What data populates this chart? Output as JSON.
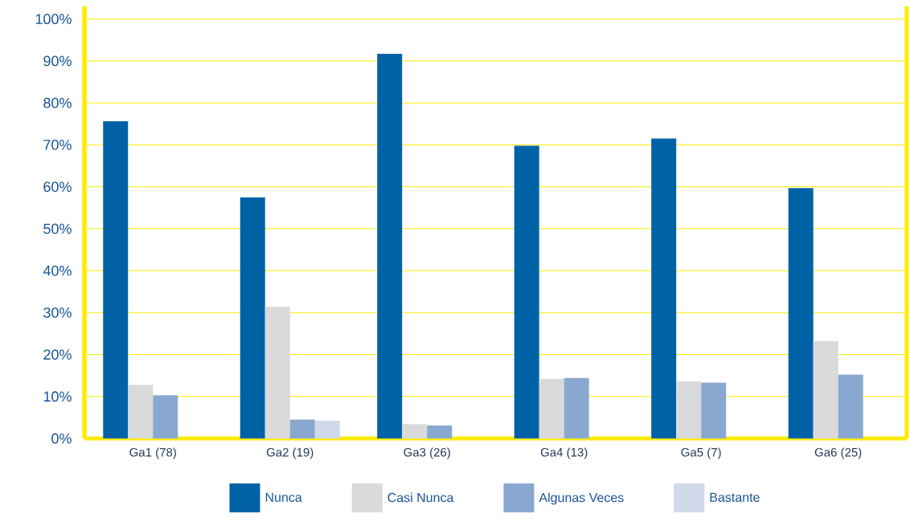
{
  "chart_data": {
    "type": "bar",
    "categories": [
      "Ga1 (78)",
      "Ga2 (19)",
      "Ga3 (26)",
      "Ga4 (13)",
      "Ga5 (7)",
      "Ga6 (25)"
    ],
    "series": [
      {
        "name": "Nunca",
        "color": "#0062a6",
        "values": [
          75.6,
          57.5,
          91.7,
          69.8,
          71.5,
          59.7
        ]
      },
      {
        "name": "Casi Nunca",
        "color": "#d9dadb",
        "values": [
          12.8,
          31.4,
          3.4,
          14.2,
          13.6,
          23.2
        ]
      },
      {
        "name": "Algunas Veces",
        "color": "#88a8d0",
        "values": [
          10.3,
          4.5,
          3.1,
          14.4,
          13.3,
          15.2
        ]
      },
      {
        "name": "Bastante",
        "color": "#cfd9ea",
        "values": [
          null,
          4.2,
          null,
          null,
          null,
          null
        ]
      }
    ],
    "ylim": [
      0,
      103
    ],
    "yticks": [
      {
        "value": 0,
        "label": "0%"
      },
      {
        "value": 10,
        "label": "10%"
      },
      {
        "value": 20,
        "label": "20%"
      },
      {
        "value": 30,
        "label": "30%"
      },
      {
        "value": 40,
        "label": "40%"
      },
      {
        "value": 50,
        "label": "50%"
      },
      {
        "value": 60,
        "label": "60%"
      },
      {
        "value": 70,
        "label": "70%"
      },
      {
        "value": 80,
        "label": "80%"
      },
      {
        "value": 90,
        "label": "90%"
      },
      {
        "value": 100,
        "label": "100%"
      }
    ],
    "grid": "y",
    "legend": "bottom"
  }
}
